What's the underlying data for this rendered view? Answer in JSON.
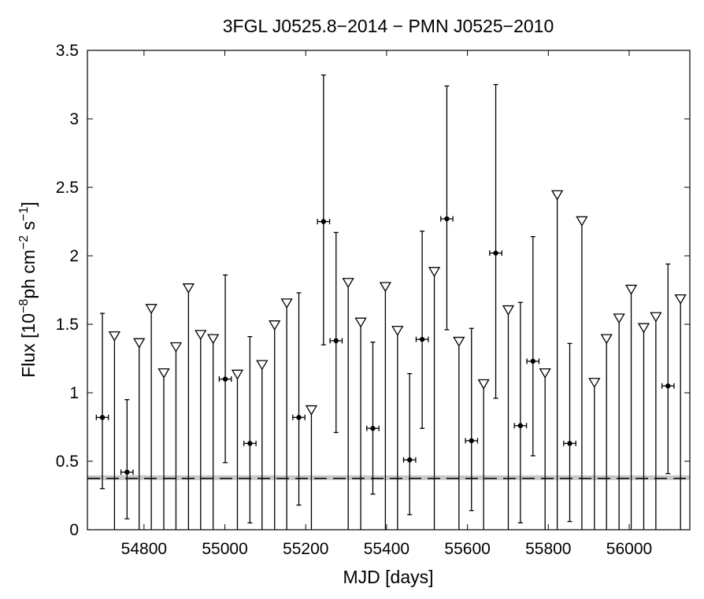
{
  "chart_data": {
    "type": "scatter",
    "title": "3FGL J0525.8−2014 − PMN J0525−2010",
    "xlabel": "MJD [days]",
    "ylabel": {
      "prefix": "Flux [10",
      "exp1": "−8",
      "mid1": "ph cm",
      "exp2": "−2",
      "mid2": " s",
      "exp3": "−1",
      "suffix": "]"
    },
    "xlim": [
      54660,
      56150
    ],
    "ylim": [
      0,
      3.5
    ],
    "xticks": [
      54800,
      55000,
      55200,
      55400,
      55600,
      55800,
      56000
    ],
    "yticks": [
      0,
      0.5,
      1,
      1.5,
      2,
      2.5,
      3,
      3.5
    ],
    "xtick_labels": [
      "54800",
      "55000",
      "55200",
      "55400",
      "55600",
      "55800",
      "56000"
    ],
    "ytick_labels": [
      "0",
      "0.5",
      "1",
      "1.5",
      "2",
      "2.5",
      "3",
      "3.5"
    ],
    "grid": false,
    "detections": [
      {
        "x": 54697,
        "y": 0.82,
        "ylo": 0.3,
        "yhi": 1.58,
        "xerr": 15
      },
      {
        "x": 54758,
        "y": 0.42,
        "ylo": 0.08,
        "yhi": 0.95,
        "xerr": 15
      },
      {
        "x": 55001,
        "y": 1.1,
        "ylo": 0.49,
        "yhi": 1.86,
        "xerr": 15
      },
      {
        "x": 55062,
        "y": 0.63,
        "ylo": 0.05,
        "yhi": 1.41,
        "xerr": 15
      },
      {
        "x": 55183,
        "y": 0.82,
        "ylo": 0.18,
        "yhi": 1.73,
        "xerr": 15
      },
      {
        "x": 55244,
        "y": 2.25,
        "ylo": 1.35,
        "yhi": 3.32,
        "xerr": 15
      },
      {
        "x": 55275,
        "y": 1.38,
        "ylo": 0.71,
        "yhi": 2.17,
        "xerr": 15
      },
      {
        "x": 55366,
        "y": 0.74,
        "ylo": 0.26,
        "yhi": 1.37,
        "xerr": 15
      },
      {
        "x": 55457,
        "y": 0.51,
        "ylo": 0.11,
        "yhi": 1.14,
        "xerr": 15
      },
      {
        "x": 55488,
        "y": 1.39,
        "ylo": 0.74,
        "yhi": 2.18,
        "xerr": 15
      },
      {
        "x": 55549,
        "y": 2.27,
        "ylo": 1.46,
        "yhi": 3.24,
        "xerr": 15
      },
      {
        "x": 55610,
        "y": 0.65,
        "ylo": 0.14,
        "yhi": 1.47,
        "xerr": 15
      },
      {
        "x": 55670,
        "y": 2.02,
        "ylo": 0.96,
        "yhi": 3.25,
        "xerr": 15
      },
      {
        "x": 55731,
        "y": 0.76,
        "ylo": 0.05,
        "yhi": 1.66,
        "xerr": 15
      },
      {
        "x": 55762,
        "y": 1.23,
        "ylo": 0.54,
        "yhi": 2.14,
        "xerr": 15
      },
      {
        "x": 55853,
        "y": 0.63,
        "ylo": 0.06,
        "yhi": 1.36,
        "xerr": 15
      },
      {
        "x": 56096,
        "y": 1.05,
        "ylo": 0.41,
        "yhi": 1.94,
        "xerr": 15
      }
    ],
    "upper_limits": [
      {
        "x": 54727,
        "y": 1.41
      },
      {
        "x": 54788,
        "y": 1.36
      },
      {
        "x": 54818,
        "y": 1.61
      },
      {
        "x": 54849,
        "y": 1.14
      },
      {
        "x": 54879,
        "y": 1.33
      },
      {
        "x": 54910,
        "y": 1.76
      },
      {
        "x": 54940,
        "y": 1.42
      },
      {
        "x": 54971,
        "y": 1.39
      },
      {
        "x": 55031,
        "y": 1.13
      },
      {
        "x": 55092,
        "y": 1.2
      },
      {
        "x": 55123,
        "y": 1.49
      },
      {
        "x": 55153,
        "y": 1.65
      },
      {
        "x": 55214,
        "y": 0.87
      },
      {
        "x": 55305,
        "y": 1.8
      },
      {
        "x": 55336,
        "y": 1.51
      },
      {
        "x": 55397,
        "y": 1.77
      },
      {
        "x": 55427,
        "y": 1.45
      },
      {
        "x": 55518,
        "y": 1.88
      },
      {
        "x": 55579,
        "y": 1.37
      },
      {
        "x": 55640,
        "y": 1.06
      },
      {
        "x": 55701,
        "y": 1.6
      },
      {
        "x": 55792,
        "y": 1.14
      },
      {
        "x": 55822,
        "y": 2.44
      },
      {
        "x": 55883,
        "y": 2.25
      },
      {
        "x": 55914,
        "y": 1.07
      },
      {
        "x": 55944,
        "y": 1.39
      },
      {
        "x": 55975,
        "y": 1.54
      },
      {
        "x": 56005,
        "y": 1.75
      },
      {
        "x": 56036,
        "y": 1.47
      },
      {
        "x": 56066,
        "y": 1.55
      },
      {
        "x": 56127,
        "y": 1.68
      }
    ],
    "reference_lines": [
      {
        "y": 0.38,
        "color": "#c8c8c8",
        "style": "solid"
      },
      {
        "y": 0.375,
        "color": "#000000",
        "style": "dashed"
      }
    ]
  }
}
